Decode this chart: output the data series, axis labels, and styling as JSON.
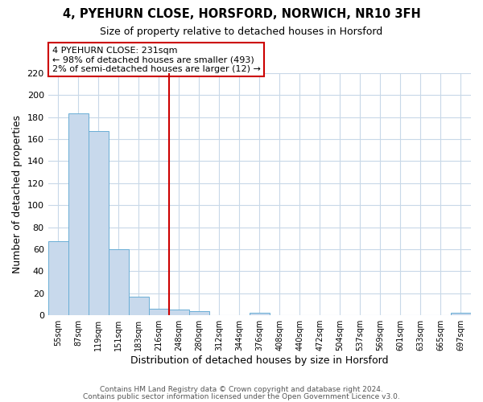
{
  "title": "4, PYEHURN CLOSE, HORSFORD, NORWICH, NR10 3FH",
  "subtitle": "Size of property relative to detached houses in Horsford",
  "xlabel": "Distribution of detached houses by size in Horsford",
  "ylabel": "Number of detached properties",
  "bar_labels": [
    "55sqm",
    "87sqm",
    "119sqm",
    "151sqm",
    "183sqm",
    "216sqm",
    "248sqm",
    "280sqm",
    "312sqm",
    "344sqm",
    "376sqm",
    "408sqm",
    "440sqm",
    "472sqm",
    "504sqm",
    "537sqm",
    "569sqm",
    "601sqm",
    "633sqm",
    "665sqm",
    "697sqm"
  ],
  "bar_values": [
    67,
    183,
    167,
    60,
    17,
    6,
    5,
    4,
    0,
    0,
    2,
    0,
    0,
    0,
    0,
    0,
    0,
    0,
    0,
    0,
    2
  ],
  "bar_color": "#c8d9ec",
  "bar_edge_color": "#6aaed6",
  "ylim": [
    0,
    220
  ],
  "yticks": [
    0,
    20,
    40,
    60,
    80,
    100,
    120,
    140,
    160,
    180,
    200,
    220
  ],
  "property_line_x": 5.5,
  "property_line_color": "#cc0000",
  "annotation_title": "4 PYEHURN CLOSE: 231sqm",
  "annotation_line1": "← 98% of detached houses are smaller (493)",
  "annotation_line2": "2% of semi-detached houses are larger (12) →",
  "annotation_box_color": "#ffffff",
  "annotation_box_edge_color": "#cc0000",
  "footer1": "Contains HM Land Registry data © Crown copyright and database right 2024.",
  "footer2": "Contains public sector information licensed under the Open Government Licence v3.0.",
  "background_color": "#ffffff",
  "grid_color": "#c8d8e8"
}
